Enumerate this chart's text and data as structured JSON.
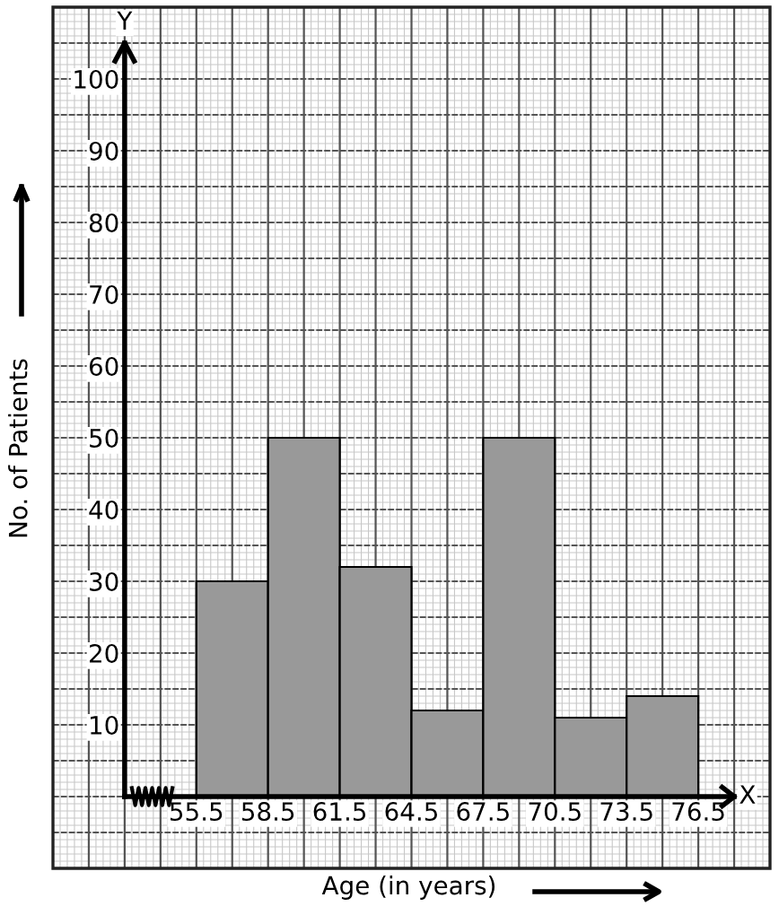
{
  "chart_data": {
    "type": "histogram",
    "xlabel": "Age (in years)",
    "ylabel": "No. of Patients",
    "bins": [
      55.5,
      58.5,
      61.5,
      64.5,
      67.5,
      70.5,
      73.5,
      76.5
    ],
    "values": [
      30,
      50,
      32,
      12,
      50,
      11,
      14
    ],
    "color": "#999999",
    "xlim": [
      49.5,
      79.5
    ],
    "ylim": [
      -10,
      110
    ],
    "xticks": [
      55.5,
      58.5,
      61.5,
      64.5,
      67.5,
      70.5,
      73.5,
      76.5
    ],
    "yticks": [
      10,
      20,
      30,
      40,
      50,
      60,
      70,
      80,
      90,
      100
    ],
    "annotations": [
      "Y",
      "X"
    ],
    "grid": true
  }
}
